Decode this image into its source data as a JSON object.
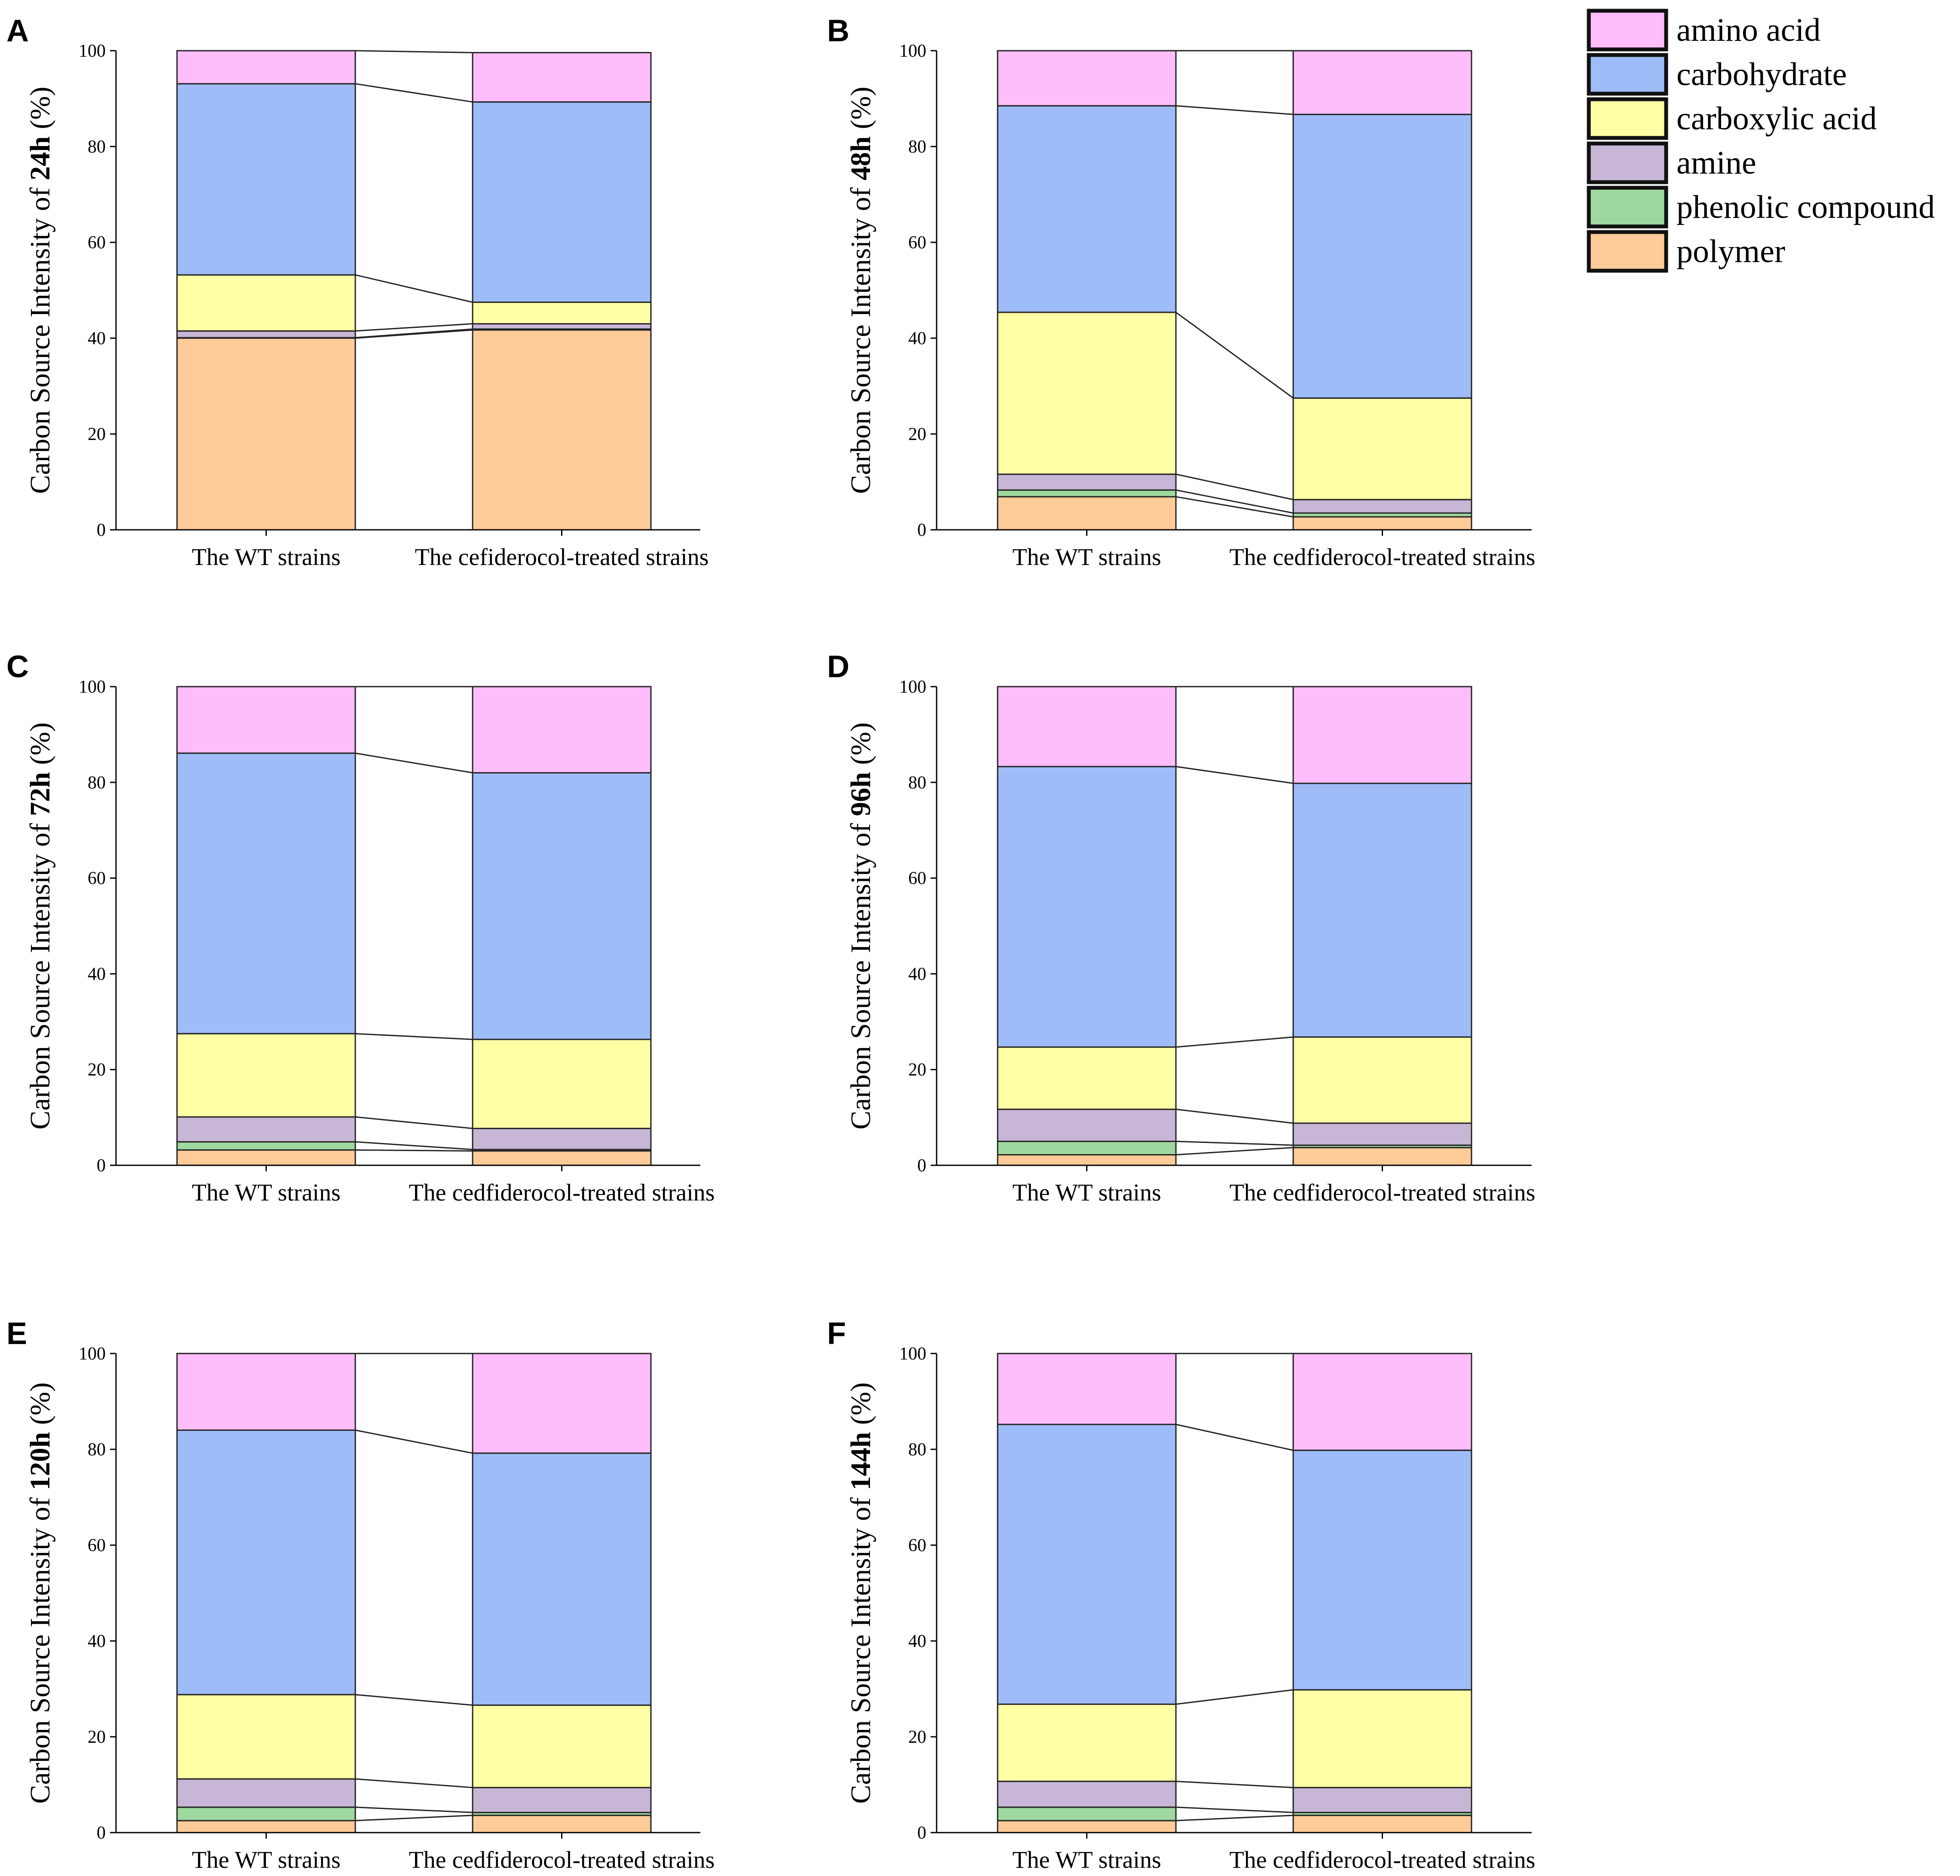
{
  "colors": {
    "amino acid": "#FFBDFB",
    "carbohydrate": "#9EBCF7",
    "carboxylic acid": "#FFFFA6",
    "amine": "#C7B6D6",
    "phenolic compound": "#9ED89E",
    "polymer": "#FFCC99"
  },
  "legend": {
    "items": [
      "amino acid",
      "carbohydrate",
      "carboxylic acid",
      "amine",
      "phenolic compound",
      "polymer"
    ]
  },
  "chart_data": [
    {
      "panel": "A",
      "type": "bar",
      "stacked": true,
      "ylabel_prefix": "Carbon Source Intensity of ",
      "ylabel_time": "24h",
      "ylabel_suffix": " (%)",
      "ylim": [
        0,
        100
      ],
      "yticks": [
        "0",
        "20",
        "40",
        "60",
        "80",
        "100"
      ],
      "categories": [
        "The WT strains",
        "The cefiderocol-treated strains"
      ],
      "series": [
        {
          "name": "polymer",
          "values": [
            40.0,
            41.7
          ]
        },
        {
          "name": "phenolic compound",
          "values": [
            0.1,
            0.2
          ]
        },
        {
          "name": "amine",
          "values": [
            1.4,
            1.1
          ]
        },
        {
          "name": "carboxylic acid",
          "values": [
            11.7,
            4.5
          ]
        },
        {
          "name": "carbohydrate",
          "values": [
            39.9,
            41.8
          ]
        },
        {
          "name": "amino acid",
          "values": [
            6.9,
            10.3
          ]
        }
      ]
    },
    {
      "panel": "B",
      "type": "bar",
      "stacked": true,
      "ylabel_prefix": "Carbon Source Intensity of ",
      "ylabel_time": "48h",
      "ylabel_suffix": " (%)",
      "ylim": [
        0,
        100
      ],
      "yticks": [
        "0",
        "20",
        "40",
        "60",
        "80",
        "100"
      ],
      "categories": [
        "The WT strains",
        "The cedfiderocol-treated strains"
      ],
      "series": [
        {
          "name": "polymer",
          "values": [
            6.9,
            2.7
          ]
        },
        {
          "name": "phenolic compound",
          "values": [
            1.4,
            0.8
          ]
        },
        {
          "name": "amine",
          "values": [
            3.3,
            2.8
          ]
        },
        {
          "name": "carboxylic acid",
          "values": [
            33.8,
            21.2
          ]
        },
        {
          "name": "carbohydrate",
          "values": [
            43.1,
            59.2
          ]
        },
        {
          "name": "amino acid",
          "values": [
            11.5,
            13.3
          ]
        }
      ]
    },
    {
      "panel": "C",
      "type": "bar",
      "stacked": true,
      "ylabel_prefix": "Carbon Source Intensity of ",
      "ylabel_time": "72h",
      "ylabel_suffix": " (%)",
      "ylim": [
        0,
        100
      ],
      "yticks": [
        "0",
        "20",
        "40",
        "60",
        "80",
        "100"
      ],
      "categories": [
        "The WT strains",
        "The cedfiderocol-treated strains"
      ],
      "series": [
        {
          "name": "polymer",
          "values": [
            3.2,
            3.0
          ]
        },
        {
          "name": "phenolic compound",
          "values": [
            1.7,
            0.3
          ]
        },
        {
          "name": "amine",
          "values": [
            5.2,
            4.4
          ]
        },
        {
          "name": "carboxylic acid",
          "values": [
            17.4,
            18.6
          ]
        },
        {
          "name": "carbohydrate",
          "values": [
            58.6,
            55.7
          ]
        },
        {
          "name": "amino acid",
          "values": [
            13.9,
            18.0
          ]
        }
      ]
    },
    {
      "panel": "D",
      "type": "bar",
      "stacked": true,
      "ylabel_prefix": "Carbon Source Intensity of ",
      "ylabel_time": "96h",
      "ylabel_suffix": " (%)",
      "ylim": [
        0,
        100
      ],
      "yticks": [
        "0",
        "20",
        "40",
        "60",
        "80",
        "100"
      ],
      "categories": [
        "The WT strains",
        "The cedfiderocol-treated strains"
      ],
      "series": [
        {
          "name": "polymer",
          "values": [
            2.2,
            3.7
          ]
        },
        {
          "name": "phenolic compound",
          "values": [
            2.8,
            0.5
          ]
        },
        {
          "name": "amine",
          "values": [
            6.7,
            4.6
          ]
        },
        {
          "name": "carboxylic acid",
          "values": [
            13.0,
            18.0
          ]
        },
        {
          "name": "carbohydrate",
          "values": [
            58.6,
            53.0
          ]
        },
        {
          "name": "amino acid",
          "values": [
            16.7,
            20.2
          ]
        }
      ]
    },
    {
      "panel": "E",
      "type": "bar",
      "stacked": true,
      "ylabel_prefix": "Carbon Source Intensity of ",
      "ylabel_time": "120h",
      "ylabel_suffix": " (%)",
      "ylim": [
        0,
        100
      ],
      "yticks": [
        "0",
        "20",
        "40",
        "60",
        "80",
        "100"
      ],
      "categories": [
        "The WT strains",
        "The cedfiderocol-treated strains"
      ],
      "series": [
        {
          "name": "polymer",
          "values": [
            2.5,
            3.6
          ]
        },
        {
          "name": "phenolic compound",
          "values": [
            2.8,
            0.6
          ]
        },
        {
          "name": "amine",
          "values": [
            5.9,
            5.2
          ]
        },
        {
          "name": "carboxylic acid",
          "values": [
            17.6,
            17.2
          ]
        },
        {
          "name": "carbohydrate",
          "values": [
            55.2,
            52.6
          ]
        },
        {
          "name": "amino acid",
          "values": [
            16.0,
            20.8
          ]
        }
      ]
    },
    {
      "panel": "F",
      "type": "bar",
      "stacked": true,
      "ylabel_prefix": "Carbon Source Intensity of ",
      "ylabel_time": "144h",
      "ylabel_suffix": " (%)",
      "ylim": [
        0,
        100
      ],
      "yticks": [
        "0",
        "20",
        "40",
        "60",
        "80",
        "100"
      ],
      "categories": [
        "The WT strains",
        "The cedfiderocol-treated strains"
      ],
      "series": [
        {
          "name": "polymer",
          "values": [
            2.5,
            3.6
          ]
        },
        {
          "name": "phenolic compound",
          "values": [
            2.8,
            0.6
          ]
        },
        {
          "name": "amine",
          "values": [
            5.4,
            5.2
          ]
        },
        {
          "name": "carboxylic acid",
          "values": [
            16.1,
            20.4
          ]
        },
        {
          "name": "carbohydrate",
          "values": [
            58.4,
            50.0
          ]
        },
        {
          "name": "amino acid",
          "values": [
            14.8,
            20.2
          ]
        }
      ]
    }
  ]
}
